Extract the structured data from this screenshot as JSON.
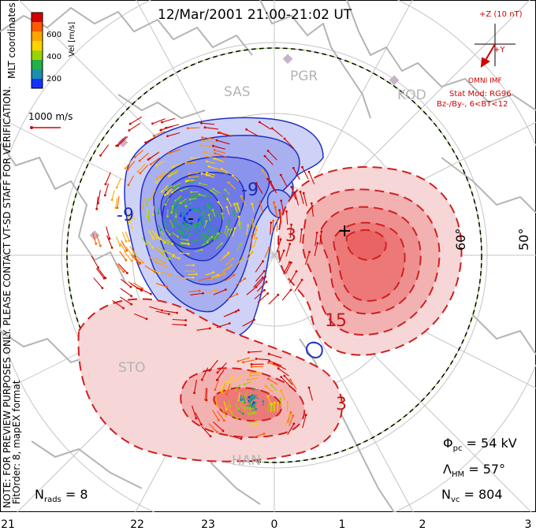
{
  "title": "12/Mar/2001 21:00-21:02 UT",
  "coordinates_label": "MLT coordinates",
  "preview_note": "NOTE: FOR PREVIEW PURPOSES ONLY. PLEASE CONTACT VT-SD STAFF FOR VERIFICATION.",
  "fit_label": "FitOrder: 8, mapEX format",
  "colorbar": {
    "title": "Vel [m/s]",
    "ticks": [
      "600",
      "400",
      "200"
    ],
    "colors": [
      "#d40000",
      "#ff5a00",
      "#ffa500",
      "#ffd400",
      "#9ad400",
      "#22b04a",
      "#1a8fb0",
      "#1430ff"
    ]
  },
  "velocity_scale_label": "1000 m/s",
  "imf": {
    "z_label": "+Z (10 nT)",
    "y_label": "+Y",
    "omni_label": "OMNI IMF",
    "model_label": "Stat Mod: RG96",
    "condition_label": "Bz-/By-, 6<BT<12"
  },
  "stations": [
    "SAS",
    "PGR",
    "KOD",
    "STO",
    "HAN"
  ],
  "contour_labels": {
    "neg": [
      "-9",
      "-9"
    ],
    "pos": [
      "3",
      "3",
      "15"
    ],
    "extremes": [
      "+",
      "-"
    ]
  },
  "latitude_labels": [
    "60°",
    "50°"
  ],
  "stats": {
    "phi_label": "Φ",
    "phi_sub": "pc",
    "phi_value": "= 54 kV",
    "lambda_label": "Λ",
    "lambda_sub": "HM",
    "lambda_value": "= 57°",
    "nvc_label": "N",
    "nvc_sub": "vc",
    "nvc_value": "= 804",
    "nrads_label": "N",
    "nrads_sub": "rads",
    "nrads_value": "= 8"
  },
  "mlt_axis": [
    "21",
    "22",
    "23",
    "0",
    "1",
    "2",
    "3"
  ],
  "colors": {
    "dusk_cell": "#3c50e6",
    "dawn_cell": "#e02828",
    "text_red": "#d10000",
    "land": "#b4b4b4"
  }
}
